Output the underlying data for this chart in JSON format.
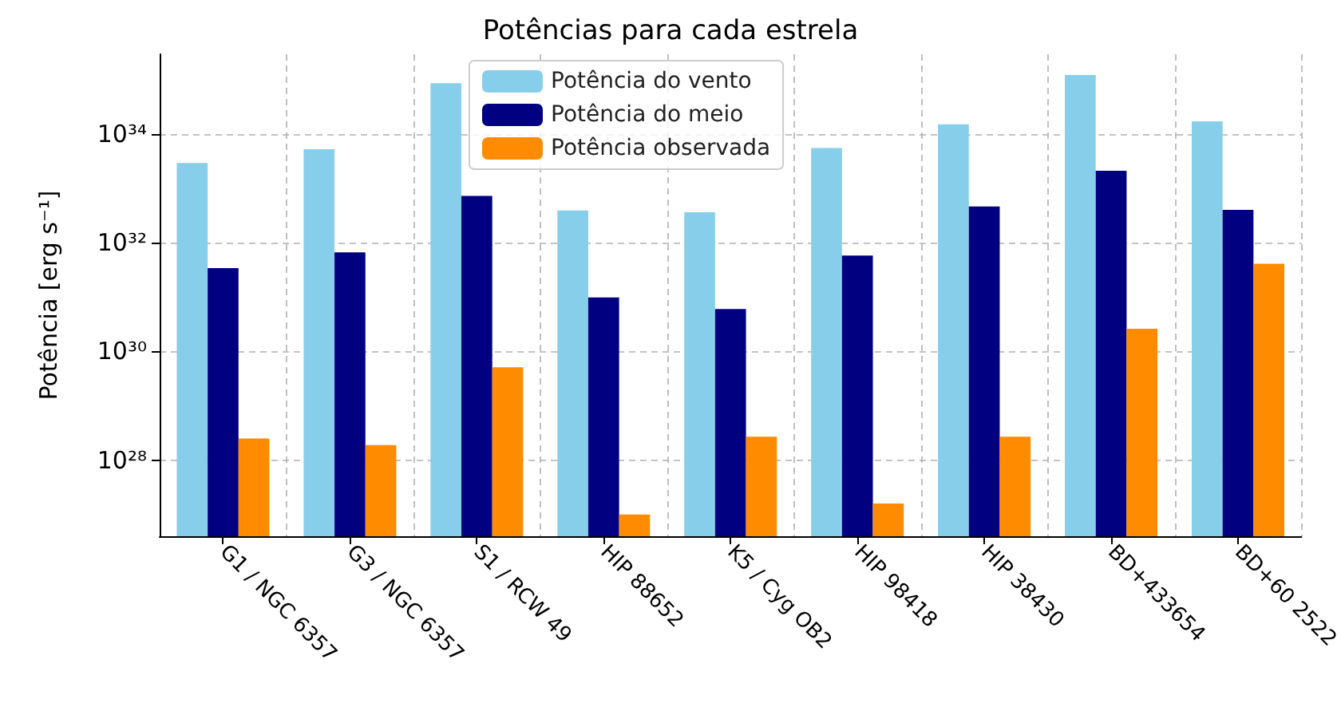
{
  "chart_data": {
    "type": "bar",
    "title": "Potências para cada estrela",
    "ylabel": "Potência [erg s⁻¹]",
    "categories": [
      "G1 / NGC 6357",
      "G3 / NGC 6357",
      "S1 / RCW 49",
      "HIP 88652",
      "K5 / Cyg OB2",
      "HIP 98418",
      "HIP 38430",
      "BD+433654",
      "BD+60 2522"
    ],
    "series": [
      {
        "name": "Potência do vento",
        "color": "#87ceeb",
        "values": [
          2.9e+33,
          5.2e+33,
          8.5e+34,
          3.9e+32,
          3.6e+32,
          5.5e+33,
          1.5e+34,
          1.2e+35,
          1.7e+34
        ]
      },
      {
        "name": "Potência do meio",
        "color": "#000080",
        "values": [
          3.4e+31,
          6.6e+31,
          7.2e+32,
          9.8e+30,
          6e+30,
          5.8e+31,
          4.6e+32,
          2.1e+33,
          4e+32
        ]
      },
      {
        "name": "Potência observada",
        "color": "#ff8c00",
        "values": [
          2.5e+28,
          1.9e+28,
          5.1e+29,
          1e+27,
          2.7e+28,
          1.6e+27,
          2.7e+28,
          2.6e+30,
          4.1e+31
        ]
      }
    ],
    "ylim": [
      4e+26,
      2.9e+35
    ],
    "yticks": [
      {
        "value": 1e+28,
        "label": "10²⁸"
      },
      {
        "value": 1e+30,
        "label": "10³⁰"
      },
      {
        "value": 1e+32,
        "label": "10³²"
      },
      {
        "value": 1e+34,
        "label": "10³⁴"
      }
    ],
    "log": true,
    "grid": true,
    "legend": "top"
  }
}
